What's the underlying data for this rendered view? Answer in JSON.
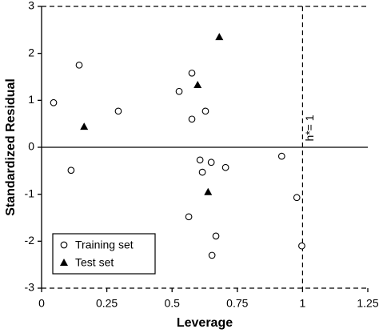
{
  "chart_data": {
    "type": "scatter",
    "x_label": "Leverage",
    "y_label": "Standardized Residual",
    "xlim": [
      0,
      1.25
    ],
    "ylim": [
      -3,
      3
    ],
    "xticks": [
      0,
      0.25,
      0.5,
      0.75,
      1,
      1.25
    ],
    "yticks": [
      -3,
      -2,
      -1,
      0,
      1,
      2,
      3
    ],
    "residual_limits": [
      -3,
      3
    ],
    "warning_leverage": 1,
    "annotation": "h*= 1",
    "legend": "lower left",
    "series": [
      {
        "name": "Training set",
        "marker": "circle",
        "color": "#000000",
        "x": [
          0.046,
          0.144,
          0.294,
          0.113,
          0.527,
          0.576,
          0.576,
          0.628,
          0.607,
          0.616,
          0.65,
          0.705,
          0.564,
          0.668,
          0.653,
          0.92,
          0.978,
          0.997
        ],
        "values": [
          0.95,
          1.75,
          0.77,
          -0.49,
          1.19,
          1.58,
          0.6,
          0.77,
          -0.27,
          -0.53,
          -0.32,
          -0.43,
          -1.48,
          -1.89,
          -2.3,
          -0.19,
          -1.07,
          -2.1
        ]
      },
      {
        "name": "Test set",
        "marker": "triangle",
        "color": "#000000",
        "x": [
          0.681,
          0.598,
          0.163,
          0.638
        ],
        "values": [
          2.35,
          1.33,
          0.44,
          -0.95
        ]
      }
    ]
  }
}
